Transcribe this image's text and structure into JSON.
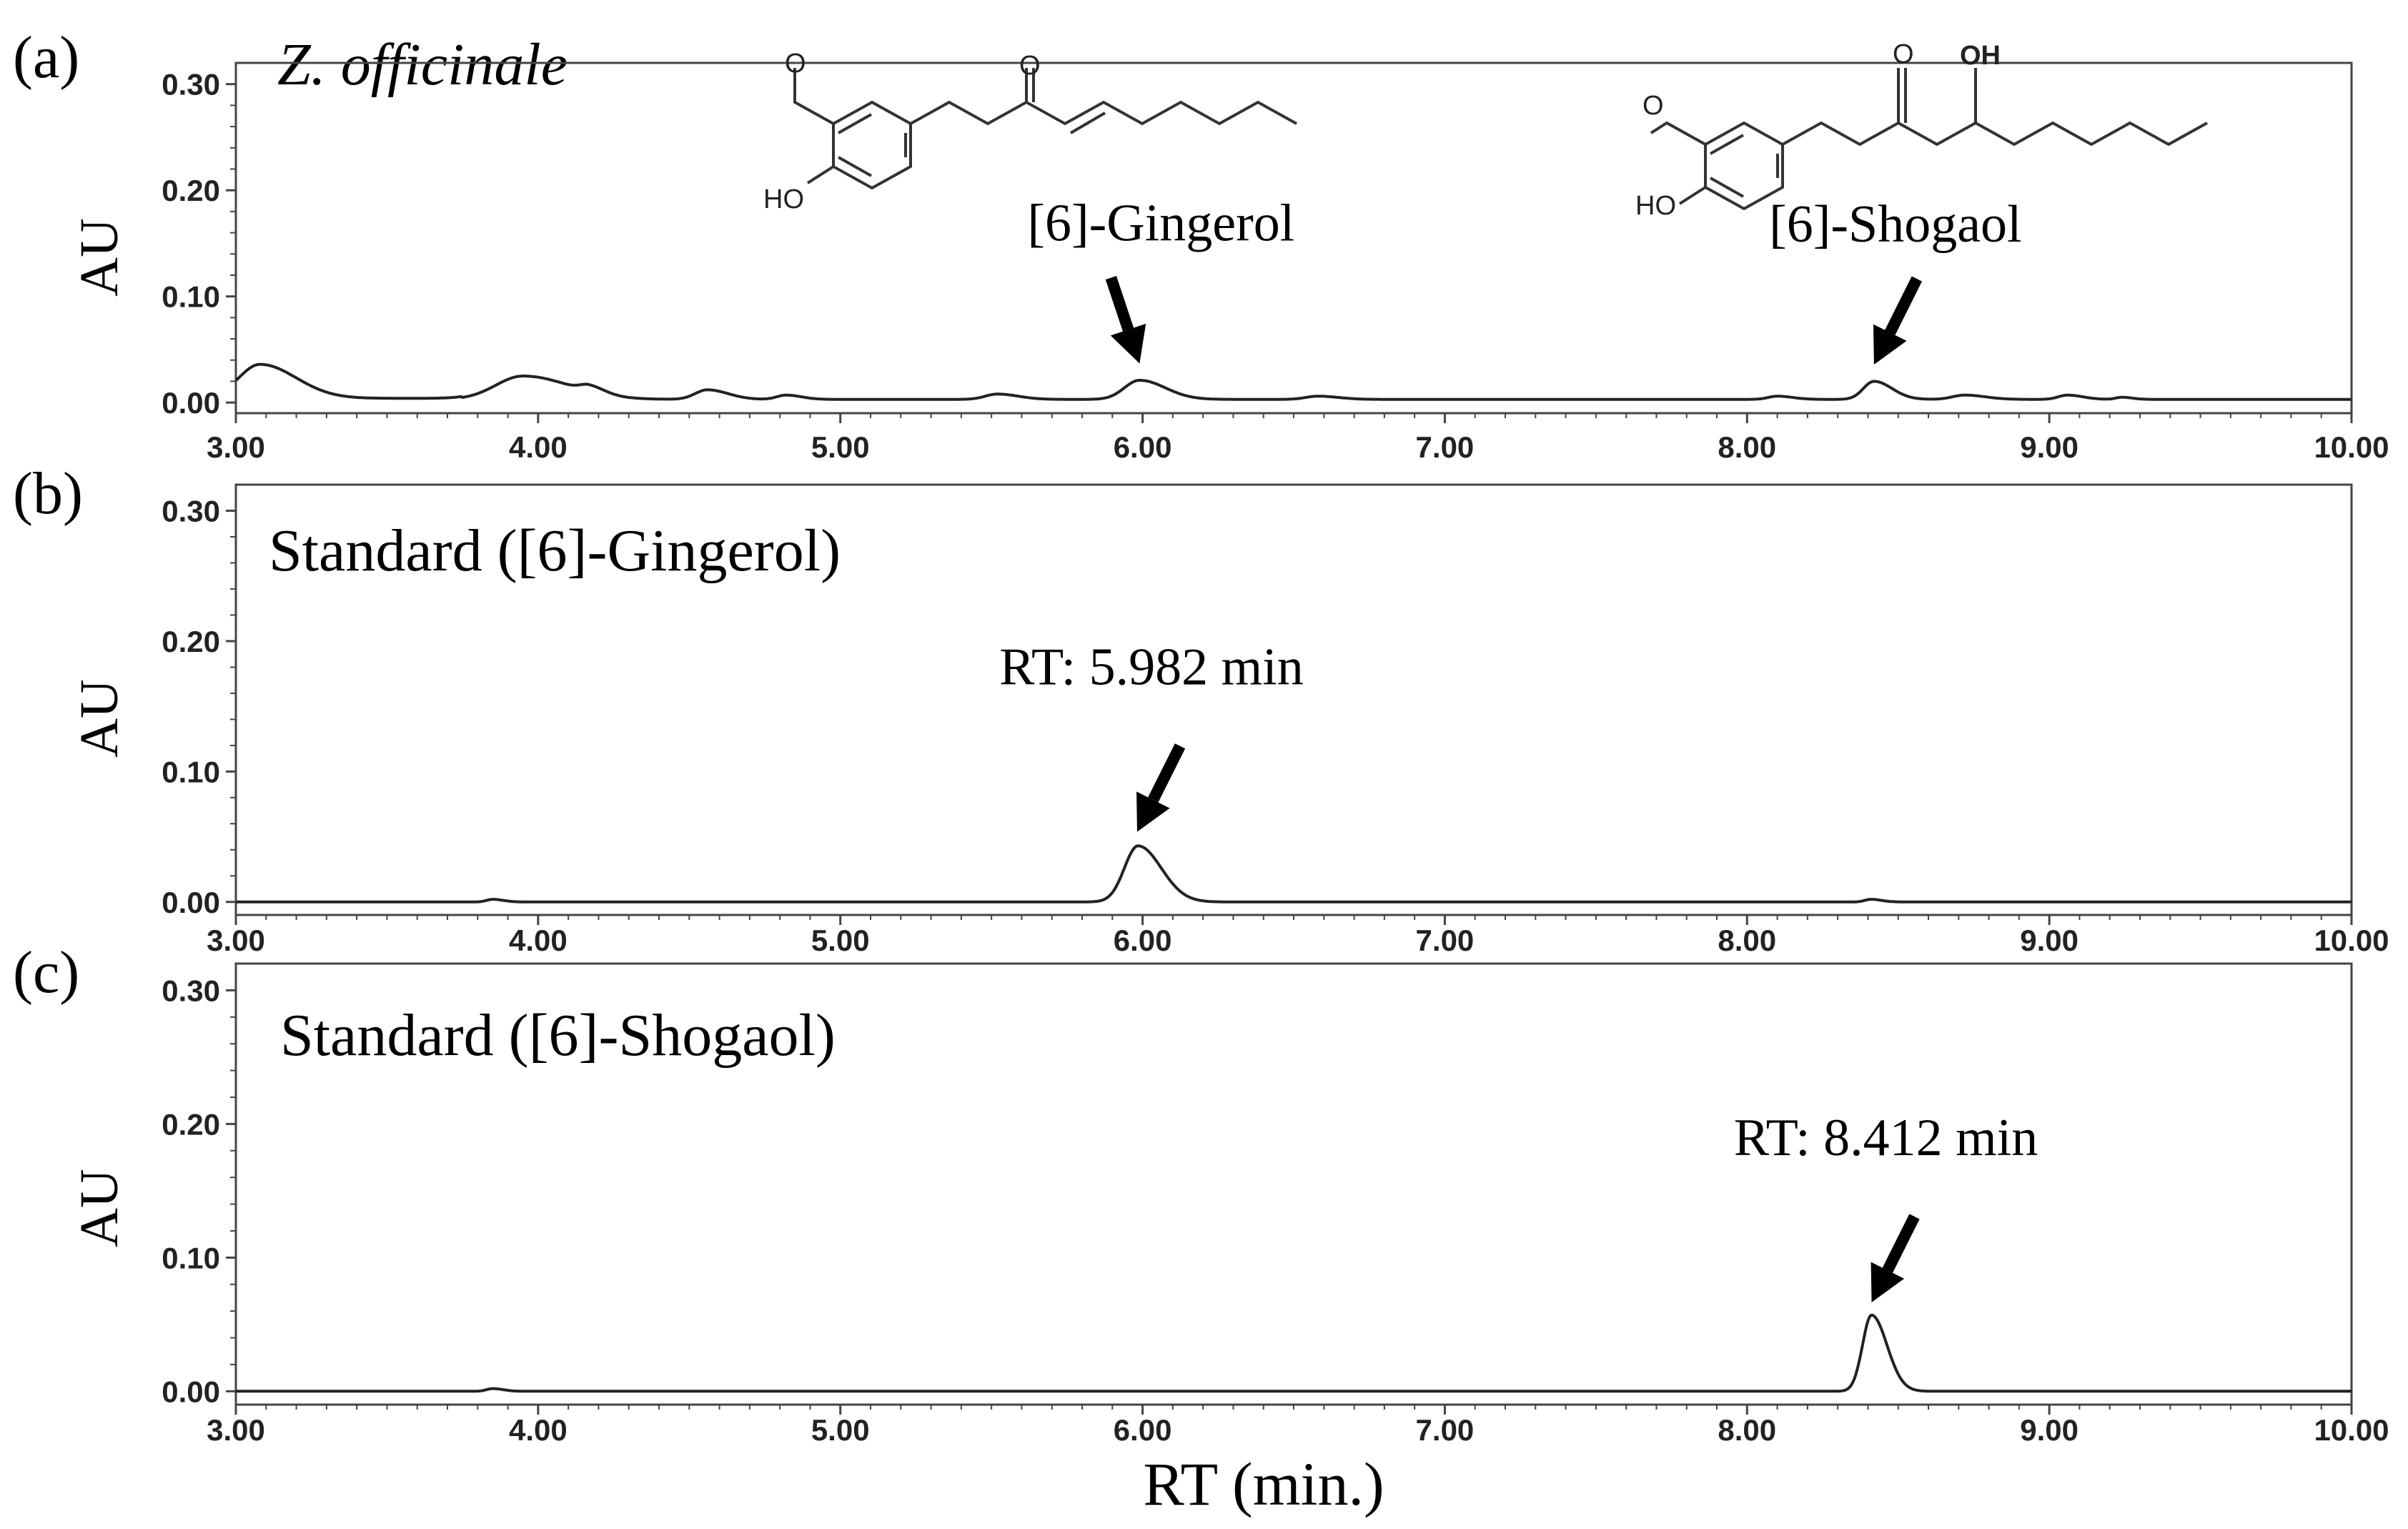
{
  "chart_data": [
    {
      "type": "line",
      "panel_label": "(a)",
      "title": "Z. officinale",
      "title_italic": true,
      "xlabel": "",
      "ylabel": "AU",
      "xlim": [
        3.0,
        10.0
      ],
      "ylim": [
        -0.01,
        0.32
      ],
      "x_ticks": [
        "3.00",
        "4.00",
        "5.00",
        "6.00",
        "7.00",
        "8.00",
        "9.00",
        "10.00"
      ],
      "y_ticks": [
        "0.00",
        "0.10",
        "0.20",
        "0.30"
      ],
      "series": [
        {
          "color": "#222222",
          "baseline": 0.004,
          "peaks": [
            {
              "x": 3.08,
              "h": 0.032,
              "w": 0.07
            },
            {
              "x": 3.95,
              "h": 0.022,
              "w": 0.09
            },
            {
              "x": 4.17,
              "h": 0.006,
              "w": 0.03
            },
            {
              "x": 4.56,
              "h": 0.009,
              "w": 0.04
            },
            {
              "x": 4.82,
              "h": 0.004,
              "w": 0.03
            },
            {
              "x": 5.52,
              "h": 0.005,
              "w": 0.04
            },
            {
              "x": 5.99,
              "h": 0.018,
              "w": 0.05
            },
            {
              "x": 6.58,
              "h": 0.003,
              "w": 0.04
            },
            {
              "x": 8.1,
              "h": 0.003,
              "w": 0.03
            },
            {
              "x": 8.42,
              "h": 0.017,
              "w": 0.035
            },
            {
              "x": 8.72,
              "h": 0.004,
              "w": 0.04
            },
            {
              "x": 9.06,
              "h": 0.004,
              "w": 0.03
            },
            {
              "x": 9.24,
              "h": 0.002,
              "w": 0.02
            }
          ]
        }
      ],
      "annotations": [
        {
          "text": "[6]-Gingerol",
          "x": 5.99,
          "y": 0.026
        },
        {
          "text": "[6]-Shogaol",
          "x": 8.42,
          "y": 0.025
        }
      ],
      "structure_labels": {
        "gingerol_o": "O",
        "gingerol_ho": "HO",
        "shogaol_o": "O",
        "shogaol_oh": "OH",
        "shogaol_ho": "HO"
      }
    },
    {
      "type": "line",
      "panel_label": "(b)",
      "title": "Standard ([6]-Gingerol)",
      "xlabel": "",
      "ylabel": "AU",
      "xlim": [
        3.0,
        10.0
      ],
      "ylim": [
        -0.01,
        0.32
      ],
      "x_ticks": [
        "3.00",
        "4.00",
        "5.00",
        "6.00",
        "7.00",
        "8.00",
        "9.00",
        "10.00"
      ],
      "y_ticks": [
        "0.00",
        "0.10",
        "0.20",
        "0.30"
      ],
      "series": [
        {
          "color": "#222222",
          "baseline": 0.0,
          "peaks": [
            {
              "x": 3.85,
              "h": 0.002,
              "w": 0.02
            },
            {
              "x": 5.985,
              "h": 0.043,
              "w": 0.045
            },
            {
              "x": 8.41,
              "h": 0.002,
              "w": 0.02
            }
          ]
        }
      ],
      "annotations": [
        {
          "text": "RT: 5.982 min",
          "x": 5.982,
          "y": 0.045
        }
      ]
    },
    {
      "type": "line",
      "panel_label": "(c)",
      "title": "Standard ([6]-Shogaol)",
      "xlabel": "RT (min.)",
      "ylabel": "AU",
      "xlim": [
        3.0,
        10.0
      ],
      "ylim": [
        -0.01,
        0.32
      ],
      "x_ticks": [
        "3.00",
        "4.00",
        "5.00",
        "6.00",
        "7.00",
        "8.00",
        "9.00",
        "10.00"
      ],
      "y_ticks": [
        "0.00",
        "0.10",
        "0.20",
        "0.30"
      ],
      "series": [
        {
          "color": "#222222",
          "baseline": 0.0,
          "peaks": [
            {
              "x": 3.85,
              "h": 0.002,
              "w": 0.02
            },
            {
              "x": 8.412,
              "h": 0.057,
              "w": 0.03
            }
          ]
        }
      ],
      "annotations": [
        {
          "text": "RT: 8.412 min",
          "x": 8.412,
          "y": 0.058
        }
      ]
    }
  ]
}
